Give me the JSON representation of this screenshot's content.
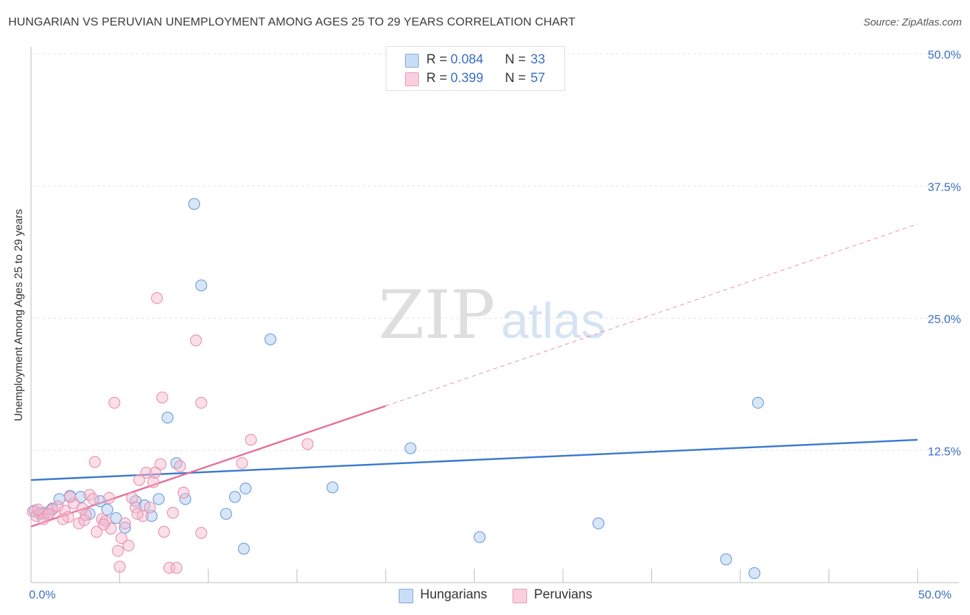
{
  "title": "HUNGARIAN VS PERUVIAN UNEMPLOYMENT AMONG AGES 25 TO 29 YEARS CORRELATION CHART",
  "source": "Source: ZipAtlas.com",
  "watermark": {
    "zip": "ZIP",
    "atlas": "atlas"
  },
  "legend_top": {
    "rows": [
      {
        "r_label": "R =",
        "r_value": "0.084",
        "n_label": "N =",
        "n_value": "33",
        "color": "#a9c8ef"
      },
      {
        "r_label": "R =",
        "r_value": "0.399",
        "n_label": "N =",
        "n_value": "57",
        "color": "#f4b8cb"
      }
    ]
  },
  "legend_bottom": {
    "items": [
      {
        "label": "Hungarians",
        "color": "#a9c8ef"
      },
      {
        "label": "Peruvians",
        "color": "#f4b8cb"
      }
    ]
  },
  "x_tick_labels": {
    "left": "0.0%",
    "right": "50.0%"
  },
  "chart_data": {
    "type": "scatter",
    "xlabel": "",
    "ylabel": "Unemployment Among Ages 25 to 29 years",
    "xlim": [
      0,
      50
    ],
    "ylim": [
      0,
      50
    ],
    "y_ticks": [
      12.5,
      25.0,
      37.5,
      50.0
    ],
    "y_tick_labels": [
      "12.5%",
      "25.0%",
      "37.5%",
      "50.0%"
    ],
    "grid": true,
    "colors": {
      "hungarians": "#3a78cf",
      "peruvians": "#e5709a",
      "hungarians_fill": "#a9c8ef",
      "peruvians_fill": "#f4b8cb"
    },
    "series": [
      {
        "name": "Hungarians",
        "points": [
          [
            0.2,
            6.8
          ],
          [
            0.5,
            6.5
          ],
          [
            0.8,
            6.6
          ],
          [
            1.2,
            7.0
          ],
          [
            1.6,
            7.9
          ],
          [
            2.2,
            8.2
          ],
          [
            2.8,
            8.1
          ],
          [
            3.3,
            6.5
          ],
          [
            3.9,
            7.7
          ],
          [
            4.3,
            6.9
          ],
          [
            4.8,
            6.1
          ],
          [
            5.3,
            5.2
          ],
          [
            5.9,
            7.7
          ],
          [
            6.4,
            7.3
          ],
          [
            6.8,
            6.3
          ],
          [
            7.2,
            7.9
          ],
          [
            7.7,
            15.6
          ],
          [
            8.2,
            11.3
          ],
          [
            8.7,
            7.9
          ],
          [
            9.2,
            35.8
          ],
          [
            9.6,
            28.1
          ],
          [
            11.0,
            6.5
          ],
          [
            11.5,
            8.1
          ],
          [
            12.0,
            3.2
          ],
          [
            12.1,
            8.9
          ],
          [
            13.5,
            23.0
          ],
          [
            17.0,
            9.0
          ],
          [
            21.4,
            12.7
          ],
          [
            25.3,
            4.3
          ],
          [
            32.0,
            5.6
          ],
          [
            39.2,
            2.2
          ],
          [
            41.0,
            17.0
          ],
          [
            40.8,
            0.9
          ]
        ]
      },
      {
        "name": "Peruvians",
        "points": [
          [
            0.1,
            6.7
          ],
          [
            0.3,
            6.3
          ],
          [
            0.6,
            6.6
          ],
          [
            0.9,
            6.4
          ],
          [
            1.2,
            6.9
          ],
          [
            1.5,
            7.2
          ],
          [
            1.9,
            6.8
          ],
          [
            2.1,
            6.2
          ],
          [
            2.4,
            7.5
          ],
          [
            2.7,
            5.6
          ],
          [
            3.0,
            5.9
          ],
          [
            3.3,
            8.3
          ],
          [
            3.5,
            7.9
          ],
          [
            3.6,
            11.4
          ],
          [
            3.7,
            4.8
          ],
          [
            4.0,
            6.0
          ],
          [
            4.2,
            5.8
          ],
          [
            4.4,
            8.0
          ],
          [
            4.5,
            5.1
          ],
          [
            4.7,
            17.0
          ],
          [
            4.9,
            3.0
          ],
          [
            5.0,
            1.5
          ],
          [
            5.1,
            4.2
          ],
          [
            5.3,
            5.6
          ],
          [
            5.5,
            3.5
          ],
          [
            5.7,
            8.0
          ],
          [
            5.9,
            7.1
          ],
          [
            6.1,
            9.7
          ],
          [
            6.3,
            6.3
          ],
          [
            6.5,
            10.4
          ],
          [
            6.7,
            7.1
          ],
          [
            6.9,
            9.5
          ],
          [
            7.1,
            26.9
          ],
          [
            7.3,
            11.2
          ],
          [
            7.4,
            17.5
          ],
          [
            7.5,
            4.8
          ],
          [
            7.8,
            1.4
          ],
          [
            8.0,
            6.6
          ],
          [
            8.2,
            1.4
          ],
          [
            8.4,
            11.0
          ],
          [
            9.3,
            22.9
          ],
          [
            9.6,
            17.0
          ],
          [
            9.6,
            4.7
          ],
          [
            11.9,
            11.3
          ],
          [
            12.4,
            13.5
          ],
          [
            15.6,
            13.1
          ],
          [
            0.4,
            6.9
          ],
          [
            0.7,
            6.0
          ],
          [
            1.0,
            6.5
          ],
          [
            1.8,
            6.0
          ],
          [
            2.2,
            8.1
          ],
          [
            2.9,
            7.0
          ],
          [
            3.1,
            6.4
          ],
          [
            4.1,
            5.5
          ],
          [
            6.0,
            6.5
          ],
          [
            7.0,
            10.4
          ],
          [
            8.6,
            8.5
          ]
        ]
      }
    ],
    "trend_lines": [
      {
        "name": "Hungarians",
        "x": [
          0,
          50
        ],
        "y": [
          9.7,
          13.5
        ],
        "style": "solid"
      },
      {
        "name": "Peruvians",
        "x": [
          0,
          20
        ],
        "y": [
          5.3,
          16.7
        ],
        "style": "solid"
      },
      {
        "name": "Peruvians",
        "x": [
          20,
          50
        ],
        "y": [
          16.7,
          33.9
        ],
        "style": "dashed"
      }
    ]
  }
}
